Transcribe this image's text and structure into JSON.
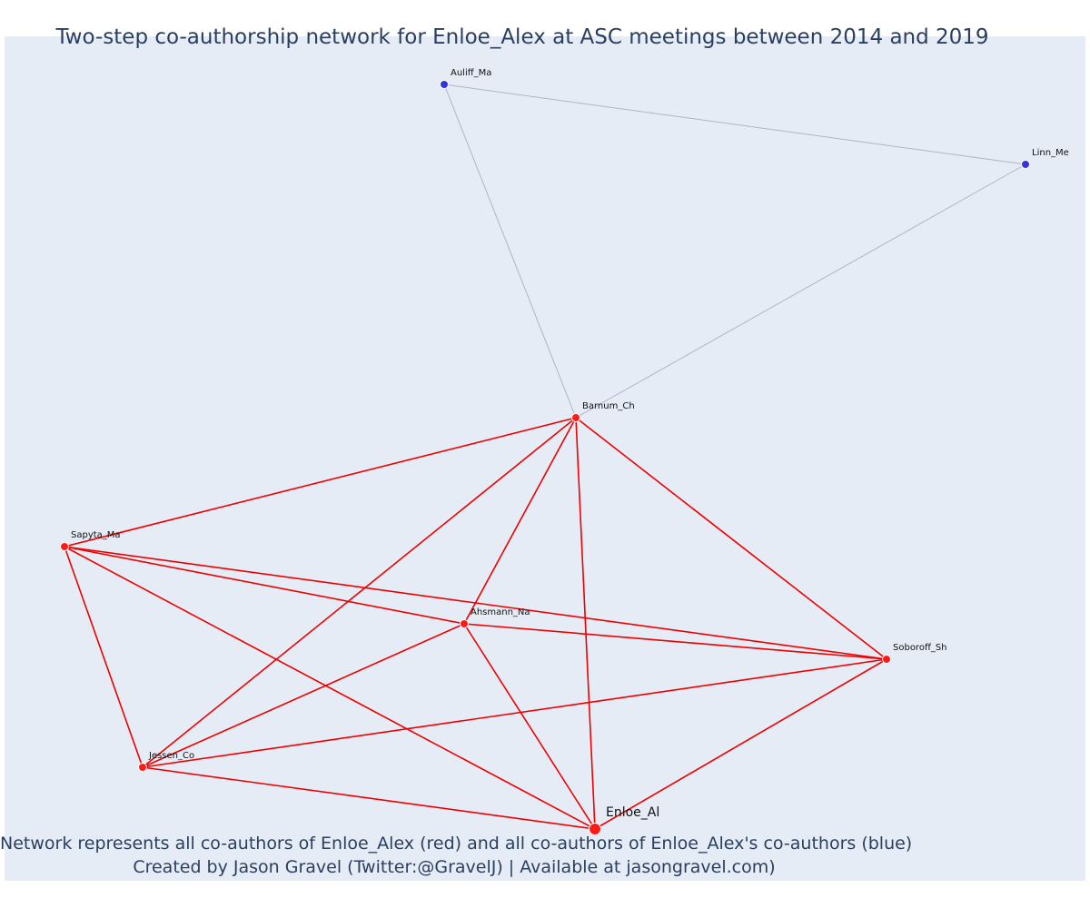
{
  "title": "Two-step co-authorship network for Enloe_Alex at ASC meetings between 2014 and 2019",
  "caption_line1": "Network represents all co-authors of Enloe_Alex (red) and all co-authors of Enloe_Alex's co-authors (blue)",
  "caption_line2": "Created by Jason Gravel (Twitter:@GravelJ) | Available at jasongravel.com)",
  "colors": {
    "background": "#e5ecf6",
    "coauthor_node": "#ff1a1a",
    "second_step_node": "#3333dd",
    "coauthor_edge": "#ee0000",
    "second_step_edge": "#b0b4c4"
  },
  "nodes": [
    {
      "id": "Enloe_Al",
      "label": "Enloe_Al",
      "group": "focal"
    },
    {
      "id": "Barnum_Ch",
      "label": "Barnum_Ch",
      "group": "coauthor"
    },
    {
      "id": "Sapyta_Ma",
      "label": "Sapyta_Ma",
      "group": "coauthor"
    },
    {
      "id": "Ahsmann_Na",
      "label": "Ahsmann_Na",
      "group": "coauthor"
    },
    {
      "id": "Soboroff_Sh",
      "label": "Soboroff_Sh",
      "group": "coauthor"
    },
    {
      "id": "Jessen_Co",
      "label": "Jessen_Co",
      "group": "coauthor"
    },
    {
      "id": "Auliff_Ma",
      "label": "Auliff_Ma",
      "group": "second_step"
    },
    {
      "id": "Linn_Me",
      "label": "Linn_Me",
      "group": "second_step"
    }
  ],
  "edges": [
    {
      "source": "Auliff_Ma",
      "target": "Linn_Me",
      "type": "second_step"
    },
    {
      "source": "Auliff_Ma",
      "target": "Barnum_Ch",
      "type": "second_step"
    },
    {
      "source": "Linn_Me",
      "target": "Barnum_Ch",
      "type": "second_step"
    },
    {
      "source": "Barnum_Ch",
      "target": "Sapyta_Ma",
      "type": "coauthor"
    },
    {
      "source": "Barnum_Ch",
      "target": "Jessen_Co",
      "type": "coauthor"
    },
    {
      "source": "Barnum_Ch",
      "target": "Ahsmann_Na",
      "type": "coauthor"
    },
    {
      "source": "Barnum_Ch",
      "target": "Enloe_Al",
      "type": "coauthor"
    },
    {
      "source": "Barnum_Ch",
      "target": "Soboroff_Sh",
      "type": "coauthor"
    },
    {
      "source": "Sapyta_Ma",
      "target": "Ahsmann_Na",
      "type": "coauthor"
    },
    {
      "source": "Sapyta_Ma",
      "target": "Soboroff_Sh",
      "type": "coauthor"
    },
    {
      "source": "Sapyta_Ma",
      "target": "Jessen_Co",
      "type": "coauthor"
    },
    {
      "source": "Sapyta_Ma",
      "target": "Enloe_Al",
      "type": "coauthor"
    },
    {
      "source": "Ahsmann_Na",
      "target": "Soboroff_Sh",
      "type": "coauthor"
    },
    {
      "source": "Ahsmann_Na",
      "target": "Jessen_Co",
      "type": "coauthor"
    },
    {
      "source": "Ahsmann_Na",
      "target": "Enloe_Al",
      "type": "coauthor"
    },
    {
      "source": "Soboroff_Sh",
      "target": "Jessen_Co",
      "type": "coauthor"
    },
    {
      "source": "Soboroff_Sh",
      "target": "Enloe_Al",
      "type": "coauthor"
    },
    {
      "source": "Jessen_Co",
      "target": "Enloe_Al",
      "type": "coauthor"
    }
  ]
}
